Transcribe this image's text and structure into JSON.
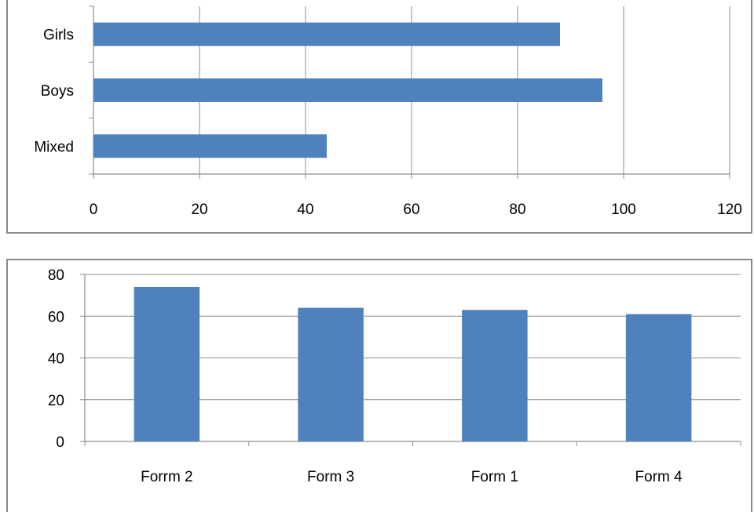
{
  "chart_data": [
    {
      "type": "bar",
      "orientation": "horizontal",
      "categories": [
        "Girls",
        "Boys",
        "Mixed"
      ],
      "values": [
        88,
        96,
        44
      ],
      "xlim": [
        0,
        120
      ],
      "x_ticks": [
        "0",
        "20",
        "40",
        "60",
        "80",
        "100",
        "120"
      ],
      "grid": "vertical",
      "legend": "none",
      "color": "#4f81bd"
    },
    {
      "type": "bar",
      "orientation": "vertical",
      "categories": [
        "Forrm 2",
        "Form 3",
        "Form 1",
        "Form 4"
      ],
      "values": [
        74,
        64,
        63,
        61
      ],
      "ylim": [
        0,
        80
      ],
      "y_ticks": [
        "0",
        "20",
        "40",
        "60",
        "80"
      ],
      "grid": "horizontal",
      "legend": "none",
      "color": "#4f81bd"
    }
  ]
}
